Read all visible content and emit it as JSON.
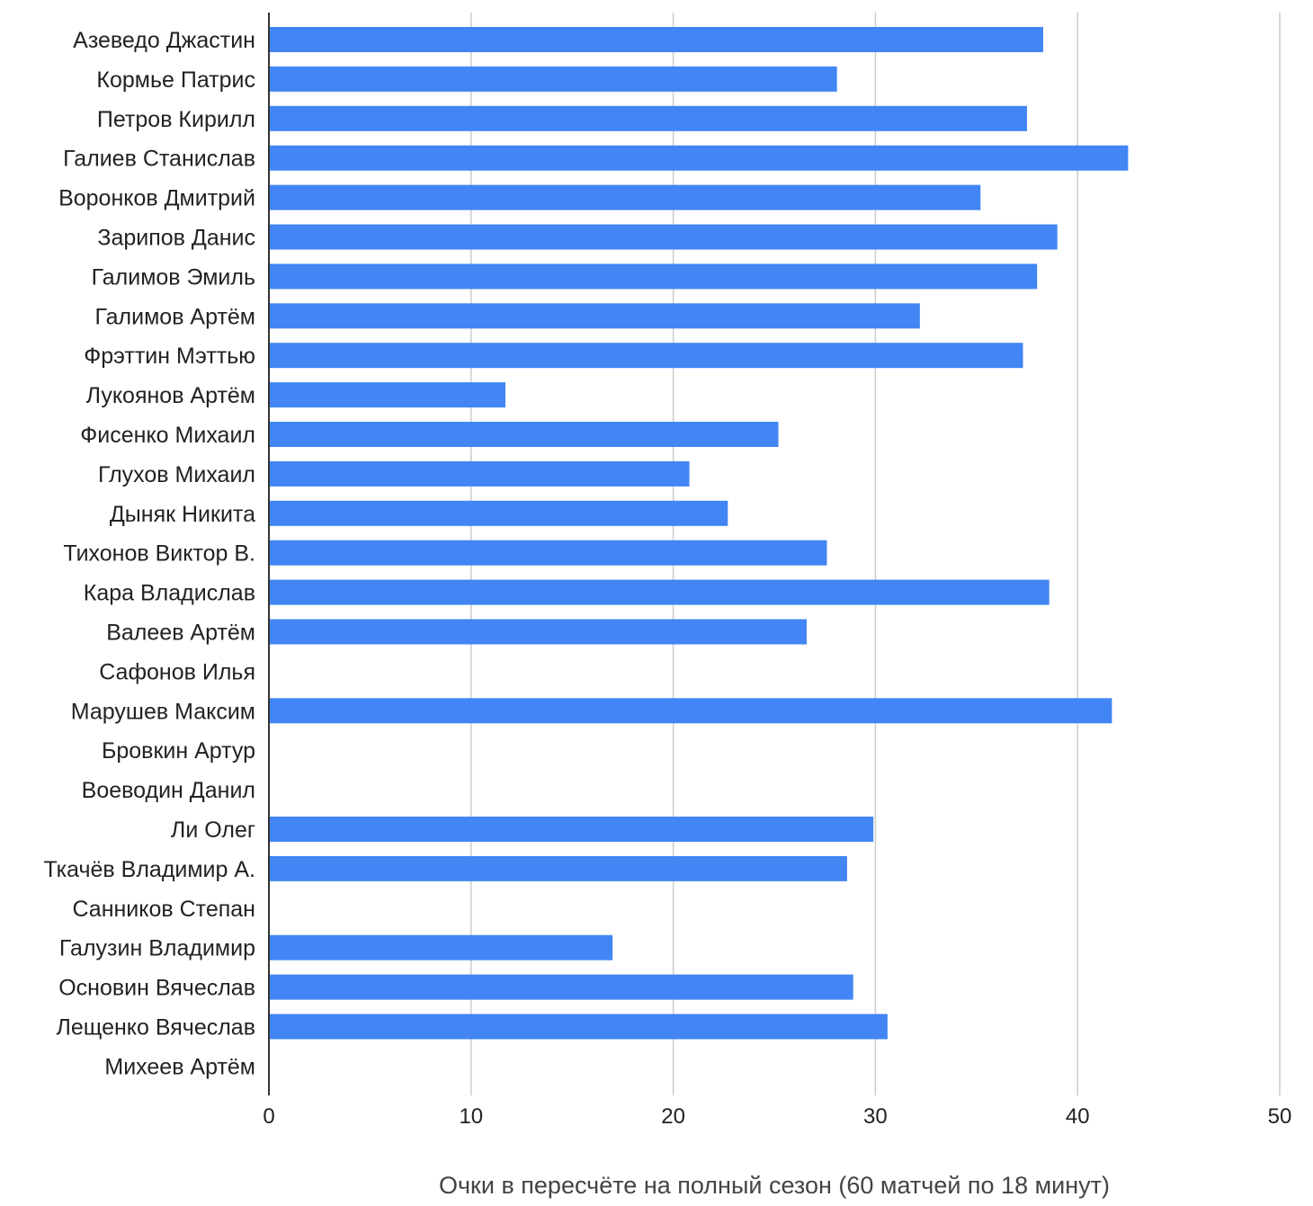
{
  "chart_data": {
    "type": "bar",
    "orientation": "horizontal",
    "title": "",
    "xlabel": "Очки в пересчёте на полный сезон (60 матчей по 18 минут)",
    "ylabel": "",
    "xlim": [
      0,
      50
    ],
    "x_ticks": [
      0,
      10,
      20,
      30,
      40,
      50
    ],
    "grid": true,
    "legend": "none",
    "bar_color": "#4285f4",
    "categories": [
      "Азеведо Джастин",
      "Кормье Патрис",
      "Петров Кирилл",
      "Галиев Станислав",
      "Воронков Дмитрий",
      "Зарипов Данис",
      "Галимов Эмиль",
      "Галимов Артём",
      "Фрэттин Мэттью",
      "Лукоянов Артём",
      "Фисенко Михаил",
      "Глухов Михаил",
      "Дыняк Никита",
      "Тихонов Виктор В.",
      "Кара Владислав",
      "Валеев Артём",
      "Сафонов Илья",
      "Марушев Максим",
      "Бровкин Артур",
      "Воеводин Данил",
      "Ли Олег",
      "Ткачёв Владимир А.",
      "Санников Степан",
      "Галузин Владимир",
      "Основин Вячеслав",
      "Лещенко Вячеслав",
      "Михеев Артём"
    ],
    "values": [
      38.3,
      28.1,
      37.5,
      42.5,
      35.2,
      39.0,
      38.0,
      32.2,
      37.3,
      11.7,
      25.2,
      20.8,
      22.7,
      27.6,
      38.6,
      26.6,
      0,
      41.7,
      0,
      0,
      29.9,
      28.6,
      0,
      17.0,
      28.9,
      30.6,
      0
    ]
  }
}
